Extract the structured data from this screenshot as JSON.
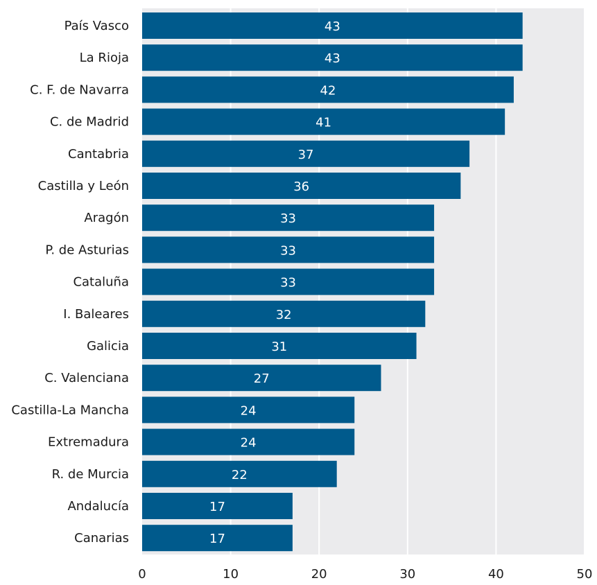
{
  "chart_data": {
    "type": "bar",
    "orientation": "horizontal",
    "categories": [
      "País Vasco",
      "La Rioja",
      "C. F. de Navarra",
      "C. de Madrid",
      "Cantabria",
      "Castilla y León",
      "Aragón",
      "P. de Asturias",
      "Cataluña",
      "I. Baleares",
      "Galicia",
      "C. Valenciana",
      "Castilla-La Mancha",
      "Extremadura",
      "R. de Murcia",
      "Andalucía",
      "Canarias"
    ],
    "values": [
      43,
      43,
      42,
      41,
      37,
      36,
      33,
      33,
      33,
      32,
      31,
      27,
      24,
      24,
      22,
      17,
      17
    ],
    "xlim": [
      0,
      50
    ],
    "xticks": [
      0,
      10,
      20,
      30,
      40,
      50
    ],
    "grid": true,
    "colors": {
      "bar": "#005a8c",
      "plot_background": "#ebebed",
      "grid": "#ffffff",
      "bar_label": "#ffffff",
      "text": "#1a1a1a"
    }
  }
}
